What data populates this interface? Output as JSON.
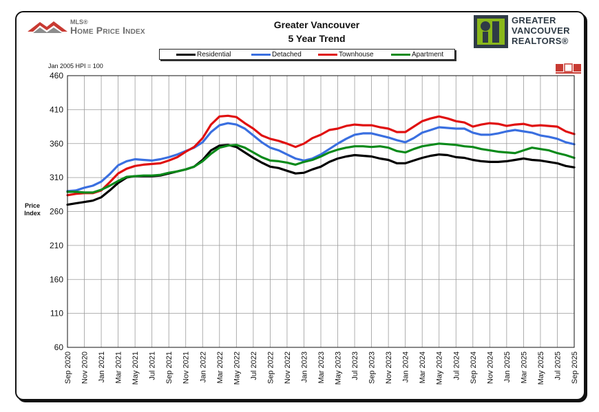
{
  "header": {
    "mls_mark": "MLS®",
    "hpi_brand": "Home Price Index",
    "title_line1": "Greater Vancouver",
    "title_line2": "5 Year Trend",
    "realtors_line1": "GREATER",
    "realtors_line2": "VANCOUVER",
    "realtors_line3": "REALTORS®"
  },
  "note": "Jan 2005 HPI = 100",
  "colors": {
    "Residential": "#000000",
    "Detached": "#3a6fe0",
    "Townhouse": "#e01010",
    "Apartment": "#0a8a1a",
    "grid": "#9a9a9a",
    "realtors_green": "#8ab81b"
  },
  "chart_data": {
    "type": "line",
    "title": "Greater Vancouver 5 Year Trend",
    "ylabel_line1": "Price",
    "ylabel_line2": "Index",
    "xlabel": "",
    "ylim": [
      60,
      460
    ],
    "yticks": [
      460,
      410,
      360,
      310,
      260,
      210,
      160,
      110,
      60
    ],
    "x_tick_labels": [
      "Sep 2020",
      "Nov 2020",
      "Jan 2021",
      "Mar 2021",
      "May 2021",
      "Jul 2021",
      "Sep 2021",
      "Nov 2021",
      "Jan 2022",
      "Mar 2022",
      "May 2022",
      "Jul 2022",
      "Sep 2022",
      "Nov 2022",
      "Jan 2023",
      "Mar 2023",
      "May 2023",
      "Jul 2023",
      "Sep 2023",
      "Nov 2023",
      "Jan 2024",
      "Mar 2024",
      "May 2024",
      "Jul 2024",
      "Sep 2024",
      "Nov 2024",
      "Jan 2025",
      "Mar 2025",
      "May 2025",
      "Jul 2025",
      "Sep 2025"
    ],
    "grid": "vertical-and-horizontal",
    "legend_position": "top",
    "series": [
      {
        "name": "Residential",
        "values": [
          270,
          272,
          274,
          276,
          281,
          291,
          302,
          310,
          312,
          312,
          312,
          313,
          316,
          319,
          322,
          326,
          336,
          350,
          357,
          358,
          355,
          347,
          339,
          332,
          326,
          324,
          320,
          316,
          317,
          322,
          326,
          333,
          338,
          341,
          343,
          342,
          341,
          338,
          336,
          331,
          331,
          335,
          339,
          342,
          344,
          343,
          340,
          339,
          336,
          334,
          333,
          333,
          334,
          336,
          338,
          336,
          335,
          333,
          331,
          327,
          325
        ]
      },
      {
        "name": "Detached",
        "values": [
          290,
          291,
          295,
          298,
          304,
          315,
          328,
          334,
          337,
          336,
          335,
          337,
          340,
          344,
          349,
          354,
          362,
          377,
          387,
          390,
          388,
          382,
          372,
          362,
          354,
          350,
          344,
          338,
          335,
          338,
          344,
          352,
          360,
          367,
          373,
          375,
          375,
          372,
          369,
          365,
          362,
          368,
          376,
          380,
          384,
          383,
          382,
          382,
          376,
          373,
          373,
          375,
          378,
          380,
          378,
          376,
          372,
          370,
          367,
          362,
          359
        ]
      },
      {
        "name": "Townhouse",
        "values": [
          284,
          286,
          287,
          287,
          291,
          303,
          316,
          323,
          327,
          329,
          330,
          331,
          335,
          340,
          348,
          355,
          368,
          388,
          400,
          401,
          399,
          390,
          382,
          372,
          367,
          364,
          360,
          355,
          360,
          368,
          373,
          380,
          382,
          386,
          388,
          387,
          387,
          384,
          382,
          377,
          377,
          385,
          393,
          397,
          400,
          397,
          393,
          391,
          385,
          388,
          390,
          389,
          386,
          388,
          389,
          386,
          387,
          386,
          385,
          378,
          374
        ]
      },
      {
        "name": "Apartment",
        "values": [
          289,
          289,
          288,
          288,
          292,
          298,
          305,
          311,
          312,
          313,
          313,
          314,
          317,
          319,
          322,
          326,
          334,
          345,
          354,
          357,
          358,
          354,
          347,
          340,
          335,
          334,
          332,
          329,
          333,
          336,
          341,
          347,
          351,
          354,
          356,
          356,
          355,
          356,
          354,
          349,
          347,
          352,
          356,
          358,
          360,
          359,
          358,
          356,
          355,
          352,
          350,
          348,
          347,
          346,
          350,
          354,
          352,
          350,
          346,
          343,
          339
        ]
      }
    ]
  }
}
